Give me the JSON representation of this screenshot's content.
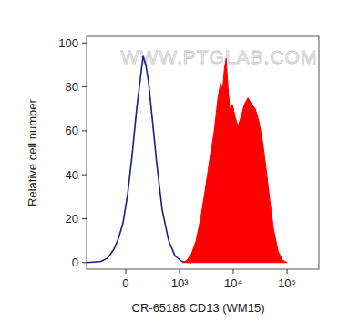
{
  "chart_data": {
    "type": "area",
    "x_label": "CR-65186 CD13 (WM15)",
    "y_label": "Relative cell number",
    "annotations": [
      "WWW.PTGLAB.COM"
    ],
    "log": "x",
    "xlim": [
      -520,
      390000
    ],
    "ylim": [
      -3,
      103
    ],
    "xticks": [
      0,
      {
        "value": 1000,
        "label": "10³"
      },
      {
        "value": 10000,
        "label": "10⁴"
      },
      {
        "value": 100000,
        "label": "10⁵"
      }
    ],
    "yticks": [
      0,
      20,
      40,
      60,
      80,
      100
    ],
    "series": [
      {
        "type": "line",
        "color": "#1c1c8a",
        "x": [
          -521,
          -267,
          -174,
          -107,
          -64,
          -24,
          16,
          56,
          98,
          135,
          164,
          196,
          230,
          280,
          354,
          459,
          616,
          820,
          1127,
          1673
        ],
        "values": [
          0,
          0.4,
          2,
          6,
          11,
          18,
          31,
          49,
          70,
          84,
          94,
          90,
          82,
          66,
          45,
          24,
          10,
          3,
          0.4,
          0
        ]
      },
      {
        "type": "area",
        "color": "#ff0000",
        "x": [
          1127,
          1373,
          1673,
          2038,
          2475,
          3010,
          3657,
          4450,
          5200,
          5850,
          6320,
          6840,
          7380,
          7990,
          8640,
          9710,
          10920,
          12280,
          13810,
          16120,
          18850,
          22050,
          25790,
          30150,
          35180,
          41150,
          48120,
          56260,
          68440,
          83020,
          101000
        ],
        "values": [
          0,
          1,
          4,
          10,
          20,
          33,
          47,
          60,
          75,
          82,
          78,
          88,
          93,
          80,
          70,
          72,
          66,
          62,
          66,
          72,
          75,
          72,
          70,
          64,
          55,
          42,
          28,
          15,
          5,
          1,
          0
        ]
      }
    ]
  }
}
